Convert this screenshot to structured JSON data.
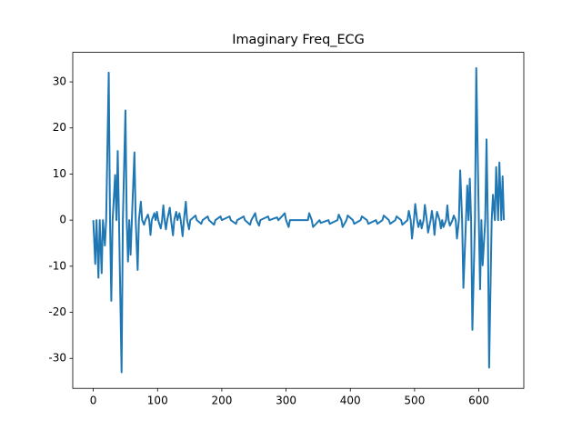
{
  "chart_data": {
    "type": "line",
    "title": "Imaginary Freq_ECG",
    "color": "#1f77b4",
    "x": [
      0,
      3,
      5,
      8,
      10,
      13,
      15,
      18,
      20,
      24,
      26,
      28,
      30,
      34,
      36,
      38,
      40,
      44,
      46,
      50,
      52,
      54,
      56,
      58,
      60,
      64,
      66,
      69,
      71,
      74,
      76,
      79,
      81,
      85,
      87,
      89,
      91,
      95,
      97,
      99,
      101,
      105,
      107,
      109,
      111,
      113,
      115,
      119,
      121,
      124,
      126,
      129,
      131,
      134,
      136,
      139,
      141,
      144,
      146,
      149,
      151,
      159,
      161,
      168,
      170,
      178,
      180,
      188,
      190,
      198,
      200,
      212,
      214,
      222,
      224,
      234,
      236,
      244,
      246,
      252,
      254,
      258,
      260,
      272,
      274,
      286,
      288,
      298,
      300,
      304,
      306,
      334,
      336,
      340,
      342,
      352,
      354,
      366,
      368,
      380,
      382,
      386,
      388,
      394,
      396,
      404,
      406,
      416,
      418,
      426,
      428,
      440,
      442,
      450,
      452,
      460,
      462,
      470,
      472,
      479,
      481,
      489,
      491,
      494,
      496,
      499,
      501,
      504,
      506,
      509,
      511,
      514,
      516,
      519,
      521,
      525,
      527,
      529,
      531,
      533,
      535,
      539,
      541,
      543,
      545,
      549,
      551,
      553,
      555,
      559,
      561,
      564,
      566,
      569,
      571,
      574,
      576,
      580,
      582,
      584,
      586,
      588,
      590,
      594,
      596,
      600,
      602,
      604,
      606,
      610,
      612,
      614,
      616,
      620,
      622,
      625,
      627,
      630,
      632,
      635,
      637,
      639
    ],
    "values": [
      0,
      -9.5,
      0,
      -12.5,
      0,
      -11.5,
      0,
      -5.5,
      0,
      32,
      0,
      -17.5,
      0,
      9.8,
      0,
      15,
      0,
      -33,
      0,
      23.8,
      0,
      -9,
      0,
      -7.5,
      0,
      14.7,
      0,
      -10.8,
      0,
      4,
      0,
      -1,
      0,
      1.2,
      0,
      -3.2,
      0,
      1.5,
      0,
      1.8,
      0,
      -1.8,
      0,
      3.2,
      0,
      -2,
      0,
      2.7,
      0,
      -3.3,
      0,
      1.8,
      0,
      1.5,
      0,
      -3.5,
      0,
      4,
      0,
      -2,
      0,
      1,
      0,
      -0.8,
      0,
      0.8,
      0,
      -1,
      0,
      0.8,
      0,
      0.8,
      0,
      -0.8,
      0,
      0.8,
      0,
      -1,
      0,
      1.5,
      0,
      -1.2,
      0,
      0.8,
      0,
      0.6,
      0,
      1.5,
      0,
      -1.5,
      0,
      0,
      1.5,
      0,
      -1.5,
      0,
      -0.6,
      0,
      -0.8,
      0,
      1.2,
      0,
      -1.5,
      0,
      1,
      0,
      -0.8,
      0,
      0.8,
      0,
      -0.8,
      0,
      -0.8,
      0,
      1,
      0,
      -0.8,
      0,
      0.8,
      0,
      -1,
      0,
      2,
      0,
      -4,
      0,
      3.5,
      0,
      -1.5,
      0,
      -1.8,
      0,
      3.3,
      0,
      -2.7,
      0,
      2,
      0,
      -3.2,
      0,
      1.8,
      0,
      -1.8,
      0,
      -1.5,
      0,
      3.2,
      0,
      -1.2,
      0,
      1,
      0,
      -4,
      0,
      10.8,
      0,
      -14.7,
      0,
      7.5,
      0,
      9,
      0,
      -23.8,
      0,
      33,
      0,
      -15,
      0,
      -9.8,
      0,
      17.5,
      0,
      -32,
      0,
      5.5,
      0,
      11.5,
      0,
      12.5,
      0,
      9.5,
      0
    ],
    "xlim": [
      -32,
      670
    ],
    "ylim": [
      -36.5,
      36.4
    ],
    "xticks": [
      0,
      100,
      200,
      300,
      400,
      500,
      600
    ],
    "yticks": [
      -30,
      -20,
      -10,
      0,
      10,
      20,
      30
    ]
  }
}
